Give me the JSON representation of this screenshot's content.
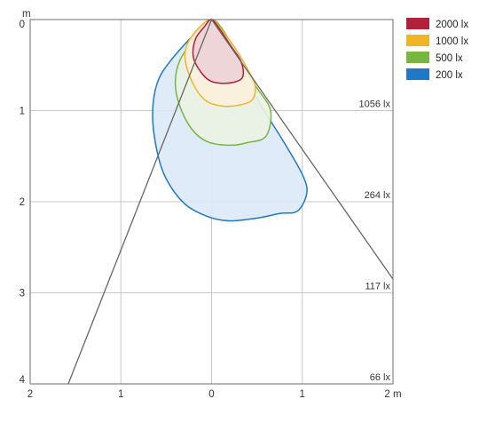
{
  "chart_data": {
    "type": "area",
    "x_unit": "m",
    "y_unit": "m",
    "xlim": [
      -2,
      2
    ],
    "ylim": [
      0,
      4
    ],
    "x_ticks": [
      "2",
      "1",
      "0",
      "1",
      "2 m"
    ],
    "y_ticks": [
      "0",
      "1",
      "2",
      "3",
      "4"
    ],
    "y_unit_label": "m",
    "grid": true,
    "beam_lines": [
      {
        "from": [
          0,
          0
        ],
        "to": [
          -1.58,
          4.0
        ]
      },
      {
        "from": [
          0,
          0
        ],
        "to": [
          2.0,
          2.85
        ]
      }
    ],
    "distance_labels": [
      {
        "y": 1.0,
        "label": "1056 lx"
      },
      {
        "y": 2.0,
        "label": "264 lx"
      },
      {
        "y": 3.0,
        "label": "117 lx"
      },
      {
        "y": 4.0,
        "label": "66 lx"
      }
    ],
    "series": [
      {
        "name": "200 lx",
        "color": "#1f78c8",
        "fill": "#dbe9f7",
        "points": [
          [
            0,
            0
          ],
          [
            0.12,
            0.12
          ],
          [
            0.3,
            0.5
          ],
          [
            0.55,
            0.95
          ],
          [
            0.8,
            1.35
          ],
          [
            1.0,
            1.7
          ],
          [
            1.05,
            1.9
          ],
          [
            0.95,
            2.1
          ],
          [
            0.75,
            2.13
          ],
          [
            0.5,
            2.18
          ],
          [
            0.2,
            2.21
          ],
          [
            -0.05,
            2.16
          ],
          [
            -0.3,
            2.02
          ],
          [
            -0.5,
            1.75
          ],
          [
            -0.6,
            1.45
          ],
          [
            -0.65,
            1.05
          ],
          [
            -0.6,
            0.7
          ],
          [
            -0.45,
            0.45
          ],
          [
            -0.15,
            0.12
          ],
          [
            0,
            0
          ]
        ]
      },
      {
        "name": "500 lx",
        "color": "#77b640",
        "fill": "#ebf3e2",
        "points": [
          [
            0,
            0
          ],
          [
            0.15,
            0.15
          ],
          [
            0.3,
            0.45
          ],
          [
            0.5,
            0.75
          ],
          [
            0.65,
            1.0
          ],
          [
            0.6,
            1.28
          ],
          [
            0.4,
            1.35
          ],
          [
            0.2,
            1.38
          ],
          [
            -0.05,
            1.34
          ],
          [
            -0.22,
            1.2
          ],
          [
            -0.35,
            0.95
          ],
          [
            -0.4,
            0.7
          ],
          [
            -0.35,
            0.45
          ],
          [
            -0.15,
            0.15
          ],
          [
            0,
            0
          ]
        ]
      },
      {
        "name": "1000 lx",
        "color": "#f0b429",
        "fill": "#fbf1dc",
        "points": [
          [
            0,
            0
          ],
          [
            0.1,
            0.1
          ],
          [
            0.25,
            0.3
          ],
          [
            0.4,
            0.55
          ],
          [
            0.48,
            0.72
          ],
          [
            0.45,
            0.88
          ],
          [
            0.3,
            0.94
          ],
          [
            0.12,
            0.95
          ],
          [
            -0.05,
            0.9
          ],
          [
            -0.18,
            0.75
          ],
          [
            -0.28,
            0.5
          ],
          [
            -0.28,
            0.3
          ],
          [
            -0.15,
            0.1
          ],
          [
            0,
            0
          ]
        ]
      },
      {
        "name": "2000 lx",
        "color": "#b3203a",
        "fill": "#ecd2d7",
        "points": [
          [
            0,
            0
          ],
          [
            0.1,
            0.12
          ],
          [
            0.22,
            0.3
          ],
          [
            0.32,
            0.45
          ],
          [
            0.35,
            0.6
          ],
          [
            0.3,
            0.67
          ],
          [
            0.15,
            0.7
          ],
          [
            0.0,
            0.68
          ],
          [
            -0.1,
            0.6
          ],
          [
            -0.2,
            0.42
          ],
          [
            -0.18,
            0.22
          ],
          [
            -0.08,
            0.08
          ],
          [
            0,
            0
          ]
        ]
      }
    ],
    "legend": {
      "placement": "top-right",
      "entries": [
        {
          "label": "2000 lx",
          "color": "#b3203a"
        },
        {
          "label": "1000 lx",
          "color": "#f0b429"
        },
        {
          "label": "500 lx",
          "color": "#77b640"
        },
        {
          "label": "200 lx",
          "color": "#1f78c8"
        }
      ]
    }
  }
}
